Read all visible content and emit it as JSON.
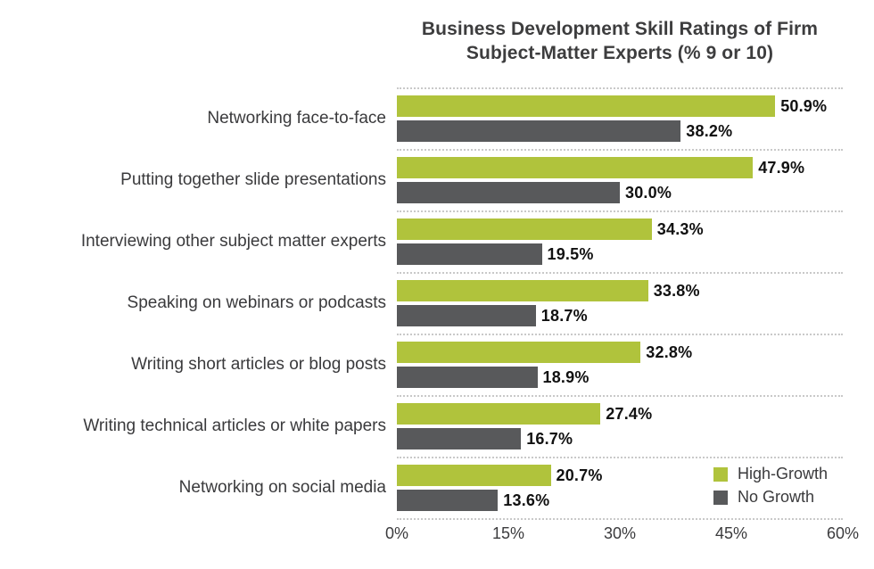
{
  "page": {
    "background": "#ffffff"
  },
  "chart_data": {
    "type": "bar",
    "orientation": "horizontal",
    "title": "Business Development Skill Ratings of Firm Subject-Matter Experts (% 9 or 10)",
    "title_lines": [
      "Business Development Skill Ratings of Firm",
      "Subject-Matter Experts (% 9 or 10)"
    ],
    "categories": [
      "Networking face-to-face",
      "Putting together slide presentations",
      "Interviewing other subject matter experts",
      "Speaking on webinars or podcasts",
      "Writing short articles or blog posts",
      "Writing technical articles or white papers",
      "Networking on social media"
    ],
    "series": [
      {
        "name": "High-Growth",
        "color": "#b0c33c",
        "values": [
          50.9,
          47.9,
          34.3,
          33.8,
          32.8,
          27.4,
          20.7
        ]
      },
      {
        "name": "No Growth",
        "color": "#58595b",
        "values": [
          38.2,
          30.0,
          19.5,
          18.7,
          18.9,
          16.7,
          13.6
        ]
      }
    ],
    "value_suffix": "%",
    "xlabel": "",
    "ylabel": "",
    "xlim": [
      0,
      60
    ],
    "x_ticks": [
      {
        "value": 0,
        "label": "0%"
      },
      {
        "value": 15,
        "label": "15%"
      },
      {
        "value": 30,
        "label": "30%"
      },
      {
        "value": 45,
        "label": "45%"
      },
      {
        "value": 60,
        "label": "60%"
      }
    ],
    "grid": "dotted horizontal separators between categories",
    "legend_position": "bottom-right",
    "colors": {
      "title_text": "#3d3d3e",
      "category_text": "#3a3a3c",
      "value_text": "#111111",
      "axis_text": "#3b3b3d",
      "separator": "#c9c9c9"
    }
  }
}
